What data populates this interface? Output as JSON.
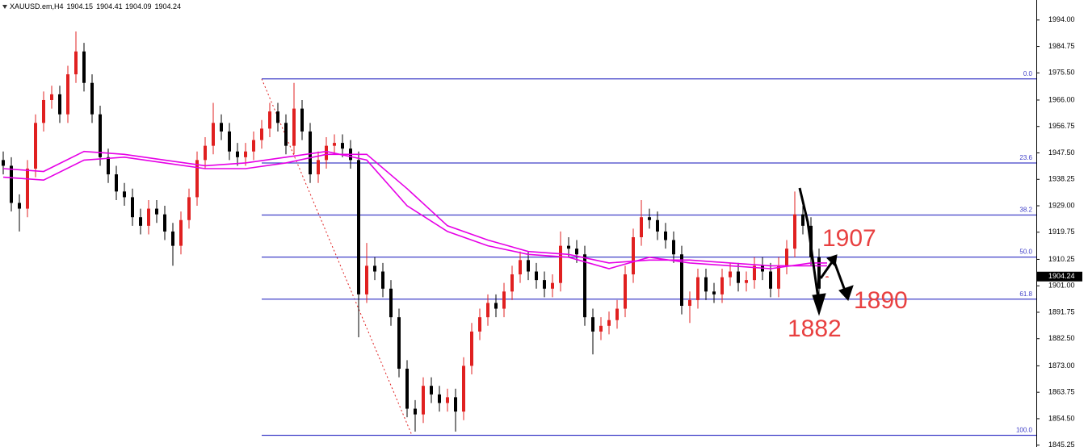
{
  "chart_data": {
    "type": "candlestick",
    "symbol": "XAUUSD.em,H4",
    "ohlc": [
      1904.15,
      1904.41,
      1904.09,
      1904.24
    ],
    "up_color": "#e02020",
    "down_color": "#000000",
    "xlim": [
      -0.4,
      127.9
    ],
    "ylim": [
      1844.6,
      2001.0
    ],
    "yticks": [
      {
        "value": 1994,
        "label": "1994.00"
      },
      {
        "value": 1984.75,
        "label": "1984.75"
      },
      {
        "value": 1975.5,
        "label": "1975.50"
      },
      {
        "value": 1966,
        "label": "1966.00"
      },
      {
        "value": 1956.75,
        "label": "1956.75"
      },
      {
        "value": 1947.5,
        "label": "1947.50"
      },
      {
        "value": 1938.25,
        "label": "1938.25"
      },
      {
        "value": 1929,
        "label": "1929.00"
      },
      {
        "value": 1919.75,
        "label": "1919.75"
      },
      {
        "value": 1910.25,
        "label": "1910.25"
      },
      {
        "value": 1901,
        "label": "1901.00"
      },
      {
        "value": 1891.75,
        "label": "1891.75"
      },
      {
        "value": 1882.5,
        "label": "1882.50"
      },
      {
        "value": 1873,
        "label": "1873.00"
      },
      {
        "value": 1863.75,
        "label": "1863.75"
      },
      {
        "value": 1854.5,
        "label": "1854.50"
      },
      {
        "value": 1845.25,
        "label": "1845.25"
      }
    ],
    "open": [
      1945,
      1943,
      1930,
      1928,
      1942,
      1958,
      1966,
      1968,
      1961,
      1975,
      1983,
      1972,
      1961,
      1946,
      1940,
      1934,
      1932,
      1925,
      1922,
      1928,
      1926,
      1920,
      1915,
      1924,
      1932,
      1945,
      1950,
      1958,
      1955,
      1948,
      1946,
      1948,
      1952,
      1956,
      1962,
      1958,
      1950,
      1963,
      1955,
      1940,
      1945,
      1950,
      1951,
      1949,
      1945,
      1898,
      1908,
      1906,
      1900,
      1890,
      1872,
      1858,
      1856,
      1866,
      1863,
      1860,
      1862,
      1857,
      1873,
      1885,
      1890,
      1895,
      1893,
      1899,
      1905,
      1910,
      1906,
      1903,
      1900,
      1902,
      1915,
      1914,
      1912,
      1890,
      1885,
      1887,
      1889,
      1893,
      1905,
      1918,
      1925,
      1924,
      1920,
      1917,
      1912,
      1894,
      1896,
      1904,
      1899,
      1898,
      1904,
      1906,
      1902,
      1903,
      1908,
      1906,
      1900,
      1908,
      1914,
      1926,
      1922,
      1911,
      1904.15
    ],
    "high": [
      1948,
      1946,
      1933,
      1945,
      1961,
      1969,
      1971,
      1971,
      1978,
      1990,
      1986,
      1975,
      1964,
      1949,
      1943,
      1937,
      1935,
      1928,
      1931,
      1931,
      1929,
      1923,
      1927,
      1935,
      1948,
      1953,
      1965,
      1961,
      1958,
      1951,
      1951,
      1955,
      1959,
      1965,
      1965,
      1961,
      1972,
      1966,
      1958,
      1948,
      1953,
      1954,
      1954,
      1952,
      1948,
      1916,
      1911,
      1909,
      1903,
      1893,
      1875,
      1861,
      1869,
      1869,
      1866,
      1865,
      1865,
      1876,
      1888,
      1893,
      1898,
      1898,
      1902,
      1908,
      1913,
      1913,
      1909,
      1906,
      1905,
      1920,
      1918,
      1917,
      1915,
      1893,
      1890,
      1892,
      1896,
      1908,
      1921,
      1931,
      1928,
      1927,
      1923,
      1920,
      1915,
      1899,
      1907,
      1907,
      1902,
      1907,
      1909,
      1909,
      1906,
      1911,
      1911,
      1909,
      1911,
      1917,
      1934,
      1929,
      1925,
      1914,
      1904.41
    ],
    "low": [
      1940,
      1927,
      1920,
      1925,
      1939,
      1955,
      1963,
      1958,
      1958,
      1972,
      1969,
      1958,
      1943,
      1937,
      1931,
      1929,
      1922,
      1919,
      1919,
      1923,
      1917,
      1908,
      1912,
      1921,
      1929,
      1942,
      1947,
      1952,
      1945,
      1943,
      1943,
      1945,
      1949,
      1953,
      1955,
      1947,
      1947,
      1952,
      1937,
      1937,
      1942,
      1947,
      1946,
      1942,
      1883,
      1895,
      1903,
      1897,
      1887,
      1869,
      1855,
      1850,
      1853,
      1860,
      1857,
      1857,
      1850,
      1854,
      1870,
      1882,
      1887,
      1890,
      1890,
      1896,
      1902,
      1903,
      1900,
      1897,
      1897,
      1899,
      1911,
      1909,
      1887,
      1877,
      1882,
      1884,
      1886,
      1890,
      1902,
      1915,
      1921,
      1917,
      1914,
      1909,
      1891,
      1888,
      1893,
      1896,
      1895,
      1895,
      1901,
      1899,
      1899,
      1900,
      1903,
      1897,
      1897,
      1905,
      1911,
      1919,
      1908,
      1897,
      1904.09
    ],
    "close": [
      1943,
      1930,
      1928,
      1942,
      1958,
      1966,
      1968,
      1961,
      1975,
      1983,
      1972,
      1961,
      1946,
      1940,
      1934,
      1932,
      1925,
      1922,
      1928,
      1926,
      1920,
      1915,
      1924,
      1932,
      1945,
      1950,
      1958,
      1955,
      1948,
      1946,
      1948,
      1952,
      1956,
      1962,
      1958,
      1950,
      1963,
      1955,
      1940,
      1945,
      1950,
      1951,
      1949,
      1945,
      1898,
      1908,
      1906,
      1900,
      1890,
      1872,
      1858,
      1856,
      1866,
      1863,
      1860,
      1862,
      1857,
      1873,
      1885,
      1890,
      1895,
      1893,
      1899,
      1905,
      1910,
      1906,
      1903,
      1900,
      1902,
      1915,
      1914,
      1912,
      1890,
      1885,
      1887,
      1889,
      1893,
      1905,
      1918,
      1925,
      1924,
      1920,
      1917,
      1912,
      1894,
      1896,
      1904,
      1899,
      1898,
      1904,
      1906,
      1902,
      1903,
      1908,
      1906,
      1900,
      1908,
      1914,
      1926,
      1922,
      1911,
      1900,
      1904.24
    ],
    "moving_averages": [
      {
        "color": "#e600e6",
        "x": [
          0,
          5,
          10,
          15,
          20,
          25,
          30,
          35,
          40,
          45,
          50,
          55,
          60,
          65,
          70,
          75,
          80,
          85,
          90,
          95,
          100,
          102
        ],
        "values": [
          1942,
          1941,
          1948,
          1947,
          1945,
          1943,
          1944,
          1946,
          1948,
          1945,
          1929,
          1920,
          1915,
          1912,
          1911,
          1907,
          1911,
          1909,
          1908,
          1907,
          1909,
          1909
        ]
      },
      {
        "color": "#e600e6",
        "x": [
          0,
          5,
          10,
          15,
          20,
          25,
          30,
          35,
          40,
          45,
          50,
          55,
          60,
          65,
          70,
          75,
          80,
          85,
          90,
          95,
          100,
          102
        ],
        "values": [
          1939,
          1938,
          1945,
          1946,
          1944,
          1942,
          1942,
          1944,
          1947,
          1947,
          1935,
          1922,
          1917,
          1913,
          1912,
          1909,
          1910,
          1910,
          1909,
          1908,
          1908,
          1908
        ]
      }
    ],
    "fib": {
      "color": "#4040c8",
      "from_index": 32,
      "to_index": 50.6,
      "levels": [
        "0.0",
        "23.6",
        "38.2",
        "50.0",
        "61.8",
        "100.0"
      ],
      "prices": [
        1973.4,
        1943.97,
        1925.76,
        1911.05,
        1896.34,
        1848.7
      ]
    },
    "annotations": [
      "1907",
      "1890",
      "1882"
    ]
  }
}
